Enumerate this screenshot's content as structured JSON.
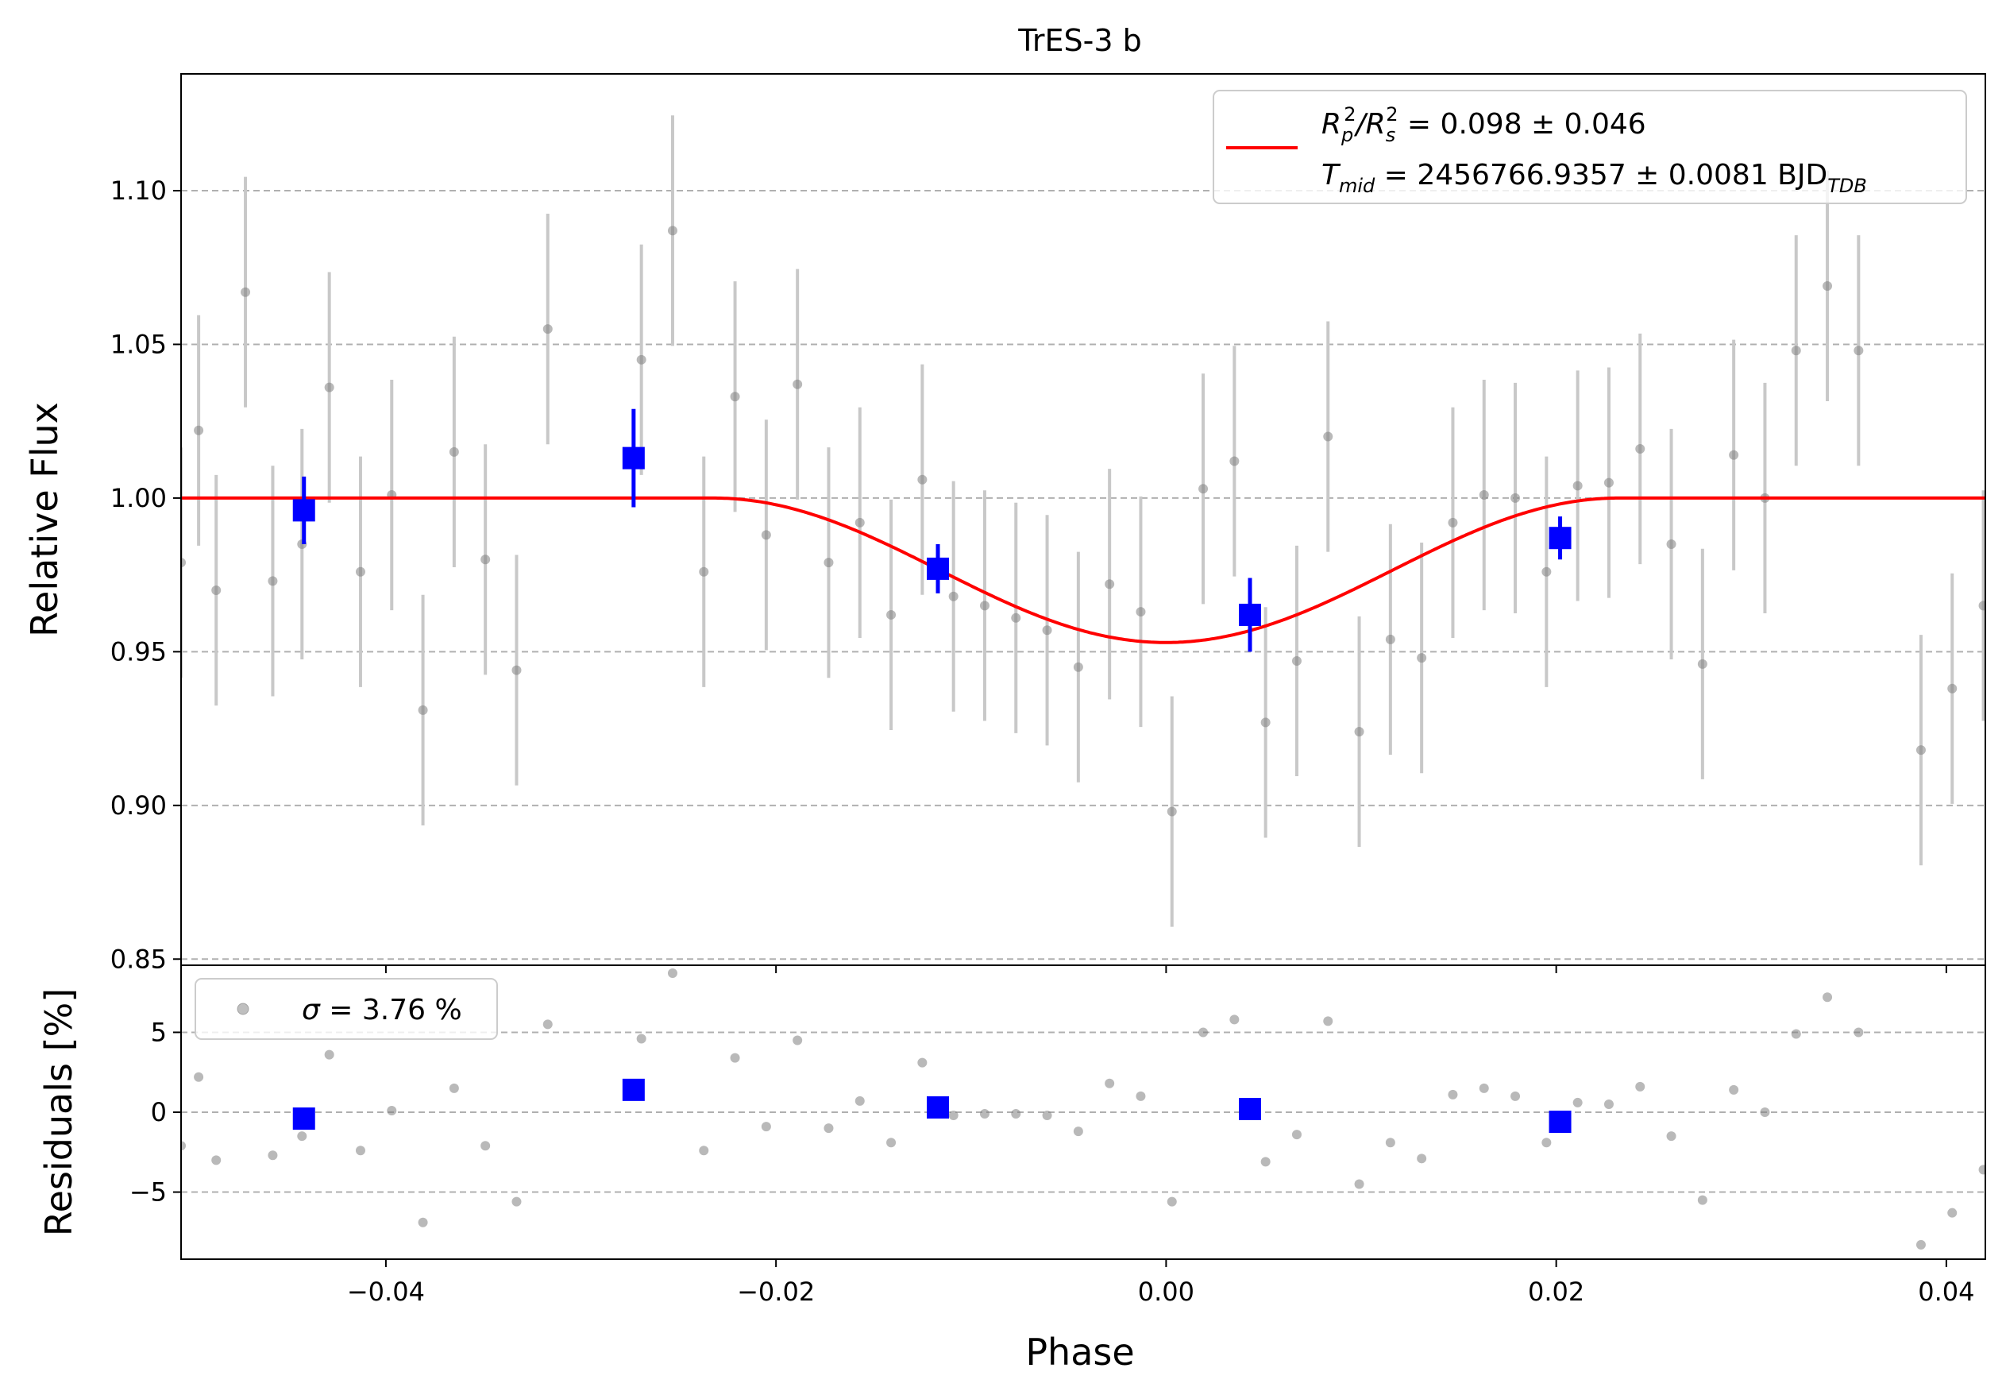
{
  "chart_data": {
    "type": "scatter",
    "title": "TrES-3 b",
    "xlabel": "Phase",
    "xlim": [
      -0.0505,
      0.042
    ],
    "xticks": [
      -0.04,
      -0.02,
      0.0,
      0.02,
      0.04
    ],
    "xtick_labels": [
      "−0.04",
      "−0.02",
      "0.00",
      "0.02",
      "0.04"
    ],
    "top": {
      "ylabel": "Relative Flux",
      "ylim": [
        0.848,
        1.138
      ],
      "yticks": [
        0.85,
        0.9,
        0.95,
        1.0,
        1.05,
        1.1
      ],
      "ytick_labels": [
        "0.85",
        "0.90",
        "0.95",
        "1.00",
        "1.05",
        "1.10"
      ],
      "grid": true,
      "legend_position": "top-right",
      "legend": {
        "line1_main": "R",
        "line1_sub_p": "p",
        "line1_sup_2": "2",
        "line1_slash": "/R",
        "line1_sub_s": "s",
        "line1_rest": " = 0.098 ± 0.046",
        "line2_main": "T",
        "line2_sub": "mid",
        "line2_rest": " = 2456766.9357 ± 0.0081 BJD",
        "line2_sub2": "TDB"
      },
      "model": {
        "color": "#ff0000",
        "t_contact": 0.0232,
        "depth": 0.047,
        "baseline": 1.0
      },
      "raw": {
        "color": "#808080",
        "x": [
          -0.0505,
          -0.0496,
          -0.0487,
          -0.0472,
          -0.0458,
          -0.0443,
          -0.0429,
          -0.0413,
          -0.0397,
          -0.0381,
          -0.0365,
          -0.0349,
          -0.0333,
          -0.0317,
          -0.0301,
          -0.0285,
          -0.0269,
          -0.0253,
          -0.0237,
          -0.0221,
          -0.0205,
          -0.0189,
          -0.0173,
          -0.0157,
          -0.0141,
          -0.0125,
          -0.0109,
          -0.0093,
          -0.0077,
          -0.0061,
          -0.0045,
          -0.0029,
          -0.0013,
          0.0003,
          0.0019,
          0.0035,
          0.0051,
          0.0067,
          0.0083,
          0.0099,
          0.0115,
          0.0131,
          0.0147,
          0.0163,
          0.0179,
          0.0195,
          0.0211,
          0.0227,
          0.0243,
          0.0259,
          0.0275,
          0.0291,
          0.0307,
          0.0323,
          0.0339,
          0.0355,
          0.0371,
          0.0387,
          0.0403,
          0.0419
        ],
        "y": [
          0.979,
          1.022,
          0.97,
          1.067,
          0.973,
          0.985,
          1.036,
          0.976,
          1.001,
          0.931,
          1.015,
          0.98,
          0.944,
          1.055,
          null,
          null,
          1.045,
          1.087,
          0.976,
          1.033,
          0.988,
          1.037,
          0.979,
          0.992,
          0.962,
          1.006,
          0.968,
          0.965,
          0.961,
          0.957,
          0.945,
          0.972,
          0.963,
          0.898,
          1.003,
          1.012,
          0.927,
          0.947,
          1.02,
          0.924,
          0.954,
          0.948,
          0.992,
          1.001,
          1.0,
          0.976,
          1.004,
          1.005,
          1.016,
          0.985,
          0.946,
          1.014,
          1.0,
          1.048,
          1.069,
          1.048,
          null,
          0.918,
          0.938,
          0.965
        ],
        "yerr": 0.0375
      },
      "binned": {
        "color": "#0000ff",
        "x": [
          -0.0442,
          -0.0273,
          -0.0117,
          0.0043,
          0.0202
        ],
        "y": [
          0.996,
          1.013,
          0.977,
          0.962,
          0.987
        ],
        "yerr": [
          0.011,
          0.016,
          0.008,
          0.012,
          0.007
        ]
      }
    },
    "bottom": {
      "ylabel": "Residuals [%]",
      "ylim": [
        -9.2,
        9.2
      ],
      "yticks": [
        -5,
        0,
        5
      ],
      "ytick_labels": [
        "−5",
        "0",
        "5"
      ],
      "grid": true,
      "legend_position": "top-left",
      "legend_sigma": "σ",
      "legend_text": " = 3.76 %",
      "raw_x": [
        -0.0505,
        -0.0496,
        -0.0487,
        -0.0458,
        -0.0443,
        -0.0429,
        -0.0413,
        -0.0397,
        -0.0381,
        -0.0365,
        -0.0349,
        -0.0333,
        -0.0317,
        -0.0269,
        -0.0253,
        -0.0237,
        -0.0221,
        -0.0205,
        -0.0189,
        -0.0173,
        -0.0157,
        -0.0141,
        -0.0125,
        -0.0109,
        -0.0093,
        -0.0077,
        -0.0061,
        -0.0045,
        -0.0029,
        -0.0013,
        0.0003,
        0.0019,
        0.0035,
        0.0051,
        0.0067,
        0.0083,
        0.0099,
        0.0115,
        0.0131,
        0.0147,
        0.0163,
        0.0179,
        0.0195,
        0.0211,
        0.0227,
        0.0243,
        0.0259,
        0.0275,
        0.0291,
        0.0307,
        0.0323,
        0.0339,
        0.0355,
        0.0387,
        0.0403,
        0.0419
      ],
      "raw_y": [
        -2.1,
        2.2,
        -3.0,
        -2.7,
        -1.5,
        3.6,
        -2.4,
        0.1,
        -6.9,
        1.5,
        -2.1,
        -5.6,
        5.5,
        4.6,
        8.7,
        -2.4,
        3.4,
        -0.9,
        4.5,
        -1.0,
        0.7,
        -1.9,
        3.1,
        -0.2,
        -0.1,
        -0.1,
        -0.2,
        -1.2,
        1.8,
        1.0,
        -5.6,
        5.0,
        5.8,
        -3.1,
        -1.4,
        5.7,
        -4.5,
        -1.9,
        -2.9,
        1.1,
        1.5,
        1.0,
        -1.9,
        0.6,
        0.5,
        1.6,
        -1.5,
        -5.5,
        1.4,
        0.0,
        4.9,
        7.2,
        5.0,
        -8.3,
        -6.3,
        -3.6
      ],
      "binned_x": [
        -0.0442,
        -0.0273,
        -0.0117,
        0.0043,
        0.0202
      ],
      "binned_y": [
        -0.4,
        1.4,
        0.3,
        0.2,
        -0.6
      ]
    }
  }
}
